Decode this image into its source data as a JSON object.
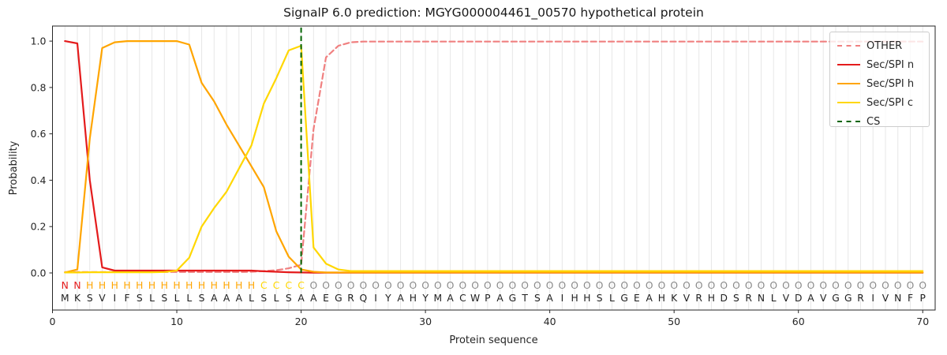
{
  "chart_data": {
    "type": "line",
    "title": "SignalP 6.0 prediction: MGYG000004461_00570 hypothetical protein",
    "xlabel": "Protein sequence",
    "ylabel": "Probability",
    "xlim": [
      0,
      71
    ],
    "ylim": [
      -0.16,
      1.065
    ],
    "xticks": [
      0,
      10,
      20,
      30,
      40,
      50,
      60,
      70
    ],
    "ytick_labels": [
      "0.0",
      "0.2",
      "0.4",
      "0.6",
      "0.8",
      "1.0"
    ],
    "yticks": [
      0.0,
      0.2,
      0.4,
      0.6,
      0.8,
      1.0
    ],
    "grid": "vertical-per-residue",
    "grid_color": "#e7e7e7",
    "legend_position": "upper right",
    "cs_position": 20,
    "sequence": "MKSVIFSLSLLSAAALSLSAAEGRQIYAHYMACWPAGTSAIHHSLGEAHKVRHDSRNLVDAVGGRIVNFP",
    "region_labels": "NNHHHHHHHHHHHHHHCCCCOOOOOOOOOOOOOOOOOOOOOOOOOOOOOOOOOOOOOOOOOOOOOOOOOO",
    "region_colors": {
      "N": "#e41b1c",
      "H": "#ffa500",
      "C": "#ffd700",
      "O": "#8a8a8a"
    },
    "sequence_color": "#1f1f1f",
    "series": [
      {
        "name": "OTHER",
        "color": "#f08080",
        "style": "dashed",
        "values": [
          0.004,
          0.004,
          0.004,
          0.004,
          0.004,
          0.004,
          0.004,
          0.004,
          0.004,
          0.004,
          0.004,
          0.004,
          0.004,
          0.004,
          0.004,
          0.005,
          0.008,
          0.012,
          0.02,
          0.035,
          0.62,
          0.93,
          0.98,
          0.995,
          0.998,
          0.998,
          0.998,
          0.998,
          0.998,
          0.998,
          0.998,
          0.998,
          0.998,
          0.998,
          0.998,
          0.998,
          0.998,
          0.998,
          0.998,
          0.998,
          0.998,
          0.998,
          0.998,
          0.998,
          0.998,
          0.998,
          0.998,
          0.998,
          0.998,
          0.998,
          0.998,
          0.998,
          0.998,
          0.998,
          0.998,
          0.998,
          0.998,
          0.998,
          0.998,
          0.998,
          0.998,
          0.998,
          0.998,
          0.998,
          0.998,
          0.998,
          0.998,
          0.998,
          0.998,
          0.998
        ]
      },
      {
        "name": "Sec/SPI n",
        "color": "#e41b1c",
        "style": "solid",
        "values": [
          1.0,
          0.99,
          0.4,
          0.024,
          0.01,
          0.01,
          0.01,
          0.01,
          0.01,
          0.01,
          0.01,
          0.01,
          0.01,
          0.01,
          0.01,
          0.01,
          0.007,
          0.005,
          0.003,
          0.002,
          0.001,
          0.001,
          0.001,
          0.001,
          0.001,
          0.001,
          0.001,
          0.001,
          0.001,
          0.001,
          0.001,
          0.001,
          0.001,
          0.001,
          0.001,
          0.001,
          0.001,
          0.001,
          0.001,
          0.001,
          0.001,
          0.001,
          0.001,
          0.001,
          0.001,
          0.001,
          0.001,
          0.001,
          0.001,
          0.001,
          0.001,
          0.001,
          0.001,
          0.001,
          0.001,
          0.001,
          0.001,
          0.001,
          0.001,
          0.001,
          0.001,
          0.001,
          0.001,
          0.001,
          0.001,
          0.001,
          0.001,
          0.001,
          0.001,
          0.001
        ]
      },
      {
        "name": "Sec/SPI h",
        "color": "#ffa500",
        "style": "solid",
        "values": [
          0.002,
          0.015,
          0.58,
          0.97,
          0.995,
          1.0,
          1.0,
          1.0,
          1.0,
          1.0,
          0.985,
          0.82,
          0.74,
          0.64,
          0.55,
          0.46,
          0.37,
          0.18,
          0.07,
          0.015,
          0.005,
          0.002,
          0.002,
          0.002,
          0.002,
          0.002,
          0.002,
          0.002,
          0.002,
          0.002,
          0.002,
          0.002,
          0.002,
          0.002,
          0.002,
          0.002,
          0.002,
          0.002,
          0.002,
          0.002,
          0.002,
          0.002,
          0.002,
          0.002,
          0.002,
          0.002,
          0.002,
          0.002,
          0.002,
          0.002,
          0.002,
          0.002,
          0.002,
          0.002,
          0.002,
          0.002,
          0.002,
          0.002,
          0.002,
          0.002,
          0.002,
          0.002,
          0.002,
          0.002,
          0.002,
          0.002,
          0.002,
          0.002,
          0.002,
          0.002
        ]
      },
      {
        "name": "Sec/SPI c",
        "color": "#ffd700",
        "style": "solid",
        "values": [
          0.002,
          0.002,
          0.003,
          0.003,
          0.003,
          0.003,
          0.003,
          0.003,
          0.004,
          0.01,
          0.066,
          0.2,
          0.28,
          0.35,
          0.45,
          0.55,
          0.73,
          0.84,
          0.96,
          0.98,
          0.11,
          0.04,
          0.015,
          0.008,
          0.008,
          0.008,
          0.008,
          0.008,
          0.008,
          0.008,
          0.008,
          0.008,
          0.008,
          0.008,
          0.008,
          0.008,
          0.008,
          0.008,
          0.008,
          0.008,
          0.008,
          0.008,
          0.008,
          0.008,
          0.008,
          0.008,
          0.008,
          0.008,
          0.008,
          0.008,
          0.008,
          0.008,
          0.008,
          0.008,
          0.008,
          0.008,
          0.008,
          0.008,
          0.008,
          0.008,
          0.008,
          0.008,
          0.008,
          0.008,
          0.008,
          0.008,
          0.008,
          0.008,
          0.008,
          0.008
        ]
      },
      {
        "name": "CS",
        "color": "#006400",
        "style": "dashed",
        "type": "vline",
        "x": 20
      }
    ]
  }
}
